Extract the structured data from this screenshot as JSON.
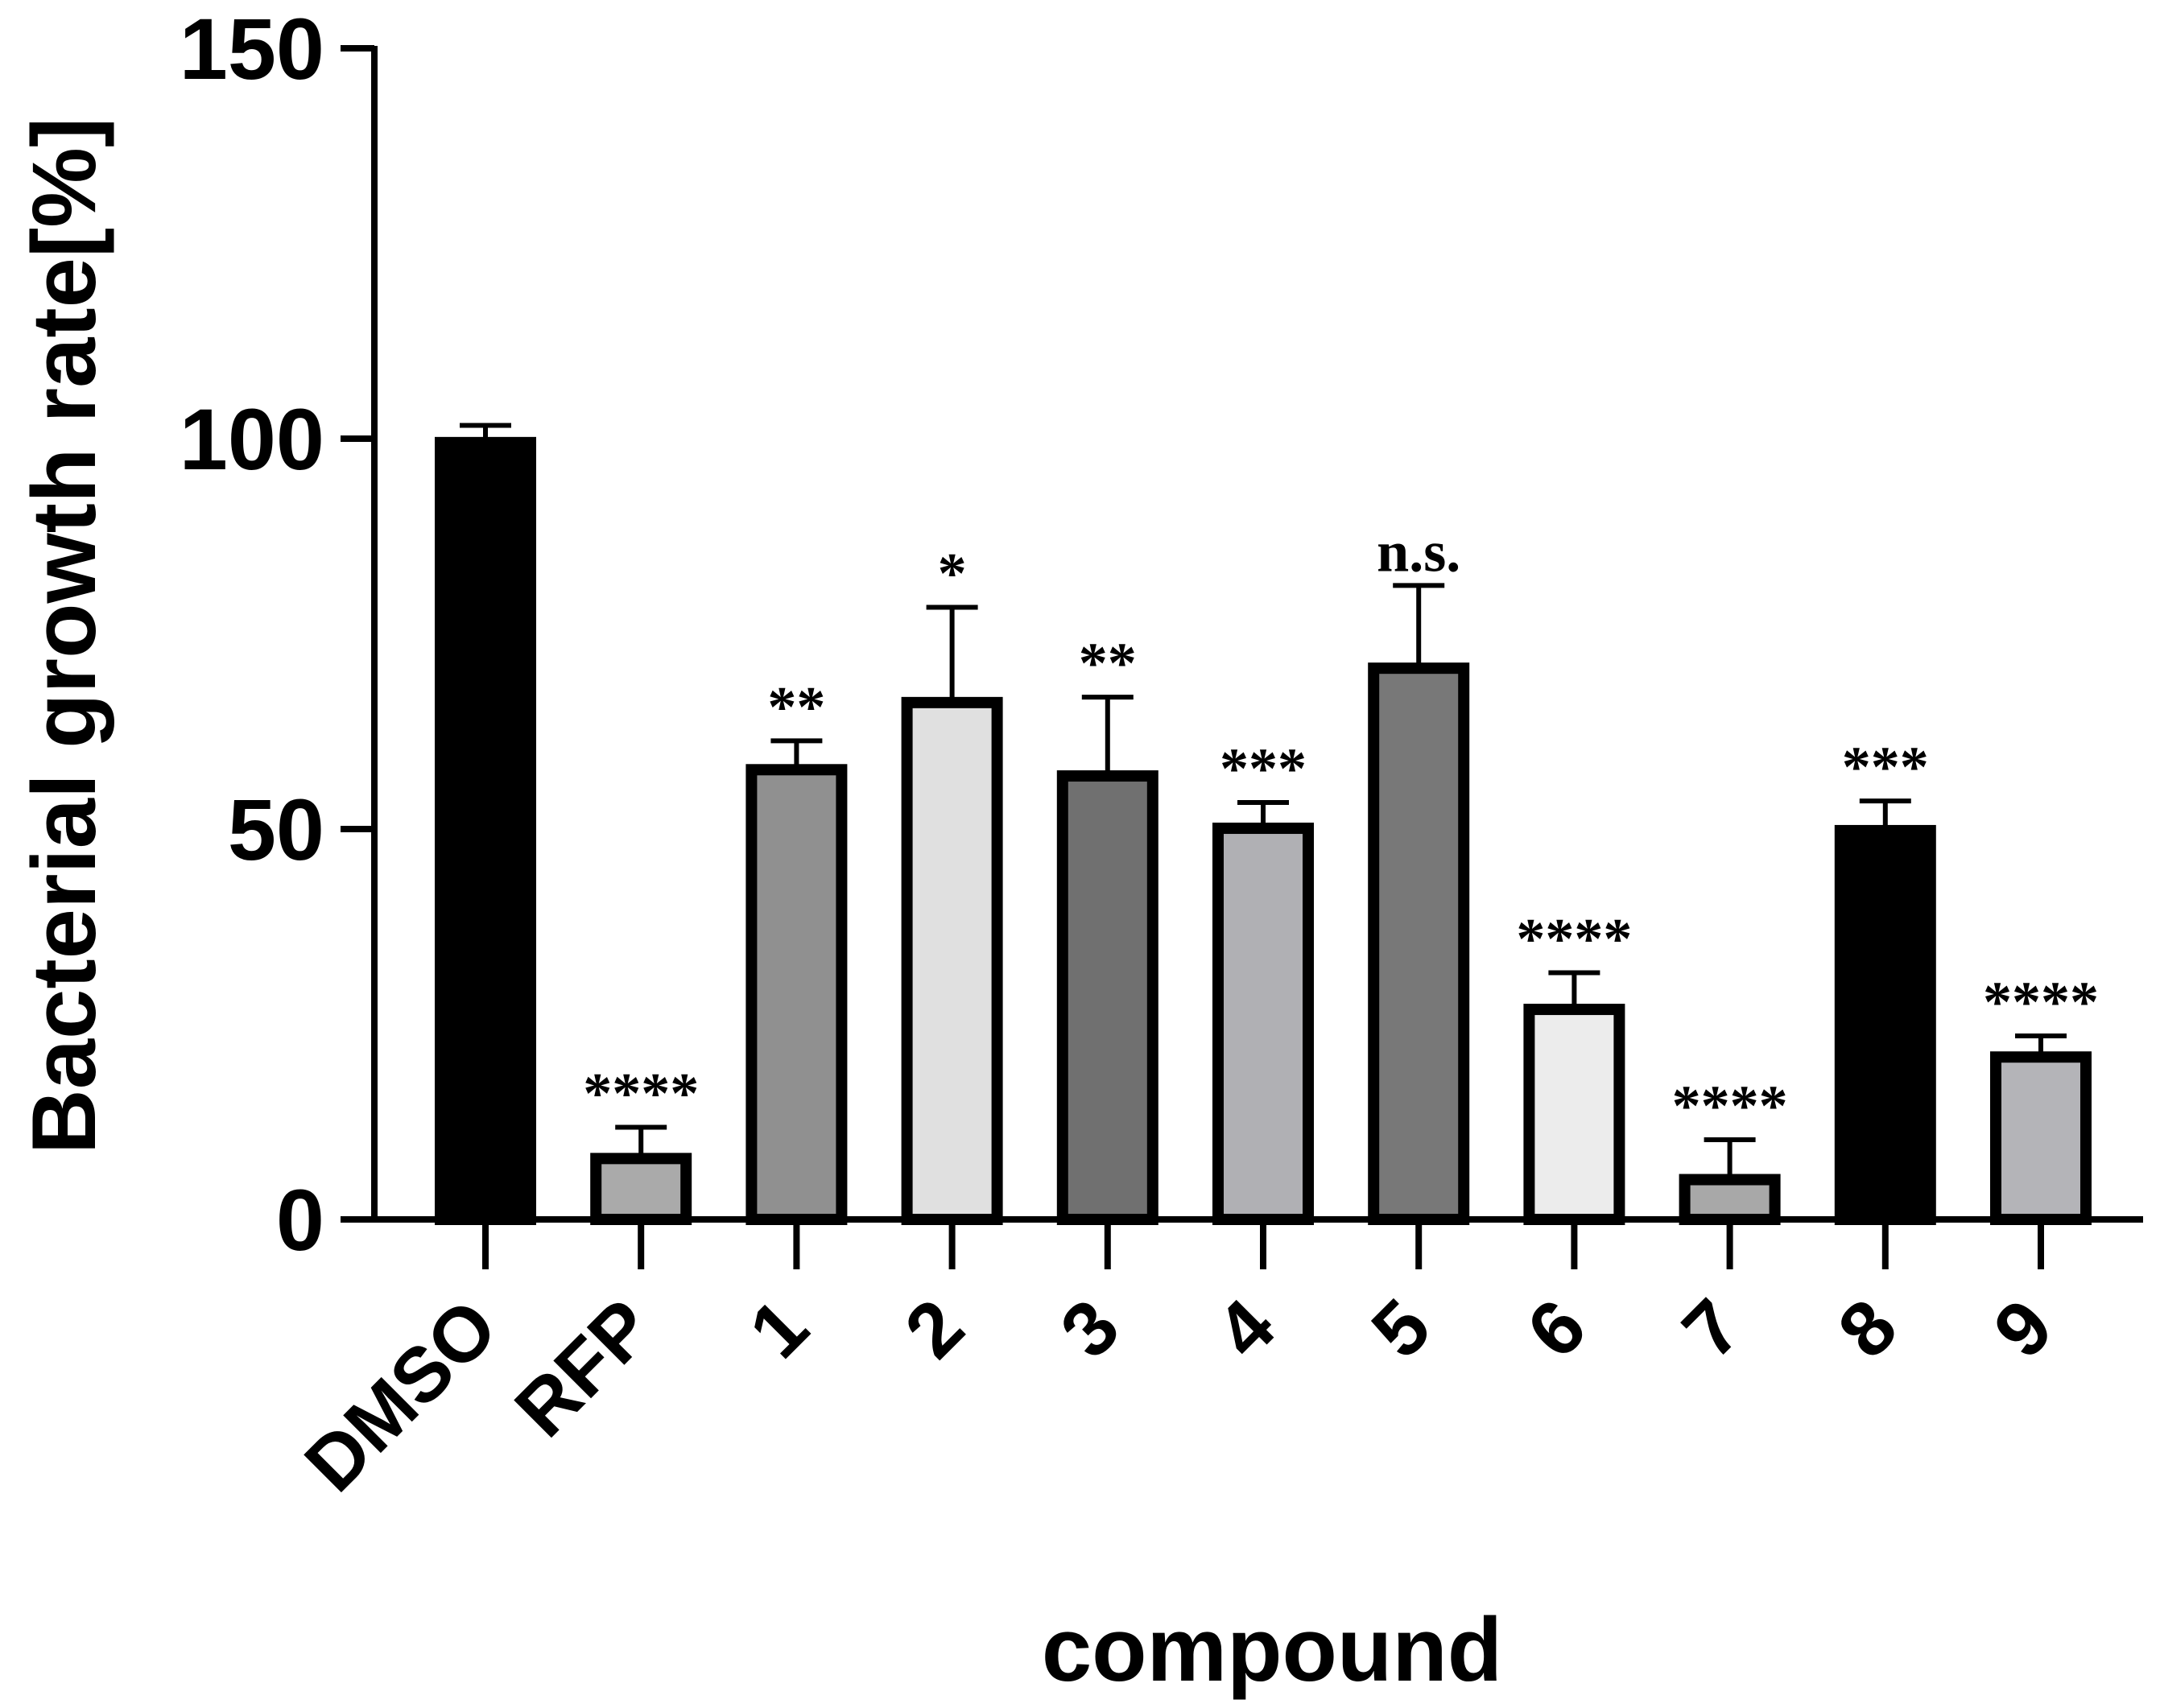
{
  "chart_data": {
    "type": "bar",
    "xlabel": "compound",
    "ylabel": "Bacterial growth rate[%]",
    "ylim": [
      0,
      150
    ],
    "yticks": [
      0,
      50,
      100,
      150
    ],
    "grid": false,
    "categories": [
      "DMSO",
      "RFP",
      "1",
      "2",
      "3",
      "4",
      "5",
      "6",
      "7",
      "8",
      "9"
    ],
    "values": [
      99.5,
      7.8,
      57.6,
      66.2,
      56.8,
      50.1,
      70.6,
      26.9,
      5.1,
      49.8,
      20.8
    ],
    "errors": [
      2.2,
      4.0,
      3.7,
      12.2,
      10.1,
      3.3,
      10.6,
      4.7,
      5.1,
      3.8,
      2.7
    ],
    "annotations": [
      "",
      "****",
      "**",
      "*",
      "**",
      "***",
      "n.s.",
      "****",
      "****",
      "***",
      "****"
    ],
    "fills": [
      "#000000",
      "#aaaaaa",
      "#909090",
      "#e0e0e0",
      "#707070",
      "#b0b0b4",
      "#787878",
      "#ececec",
      "#a8a8a8",
      "#000000",
      "#b4b4b8"
    ]
  }
}
